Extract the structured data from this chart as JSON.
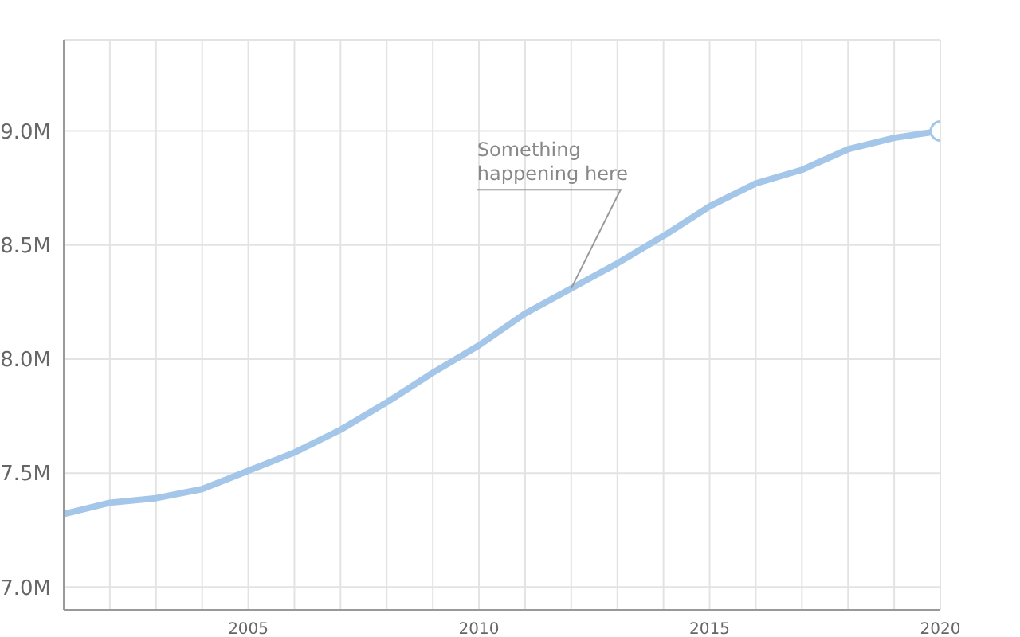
{
  "chart_data": {
    "type": "line",
    "x": [
      2001,
      2002,
      2003,
      2004,
      2005,
      2006,
      2007,
      2008,
      2009,
      2010,
      2011,
      2012,
      2013,
      2014,
      2015,
      2016,
      2017,
      2018,
      2019,
      2020
    ],
    "series": [
      {
        "color": "#a3c6e9",
        "values": [
          7.32,
          7.37,
          7.39,
          7.43,
          7.51,
          7.59,
          7.69,
          7.81,
          7.94,
          8.06,
          8.2,
          8.31,
          8.42,
          8.54,
          8.67,
          8.77,
          8.83,
          8.92,
          8.97,
          9.0
        ],
        "marker": "none"
      },
      {
        "type": "scatter",
        "color": "#a3c6e9",
        "x": [
          2020
        ],
        "values": [
          9.0
        ],
        "marker": "circle"
      }
    ],
    "xlim": [
      2001,
      2020
    ],
    "xticks": [
      {
        "value": 2001,
        "label": null
      },
      {
        "value": 2002,
        "label": null
      },
      {
        "value": 2003,
        "label": null
      },
      {
        "value": 2004,
        "label": null
      },
      2005,
      {
        "value": 2006,
        "label": null
      },
      {
        "value": 2007,
        "label": null
      },
      {
        "value": 2008,
        "label": null
      },
      {
        "value": 2009,
        "label": null
      },
      2010,
      {
        "value": 2011,
        "label": null
      },
      {
        "value": 2012,
        "label": null
      },
      {
        "value": 2013,
        "label": null
      },
      {
        "value": 2014,
        "label": null
      },
      2015,
      {
        "value": 2016,
        "label": null
      },
      {
        "value": 2017,
        "label": null
      },
      {
        "value": 2018,
        "label": null
      },
      {
        "value": 2019,
        "label": null
      },
      2020
    ],
    "ylim": [
      6.9,
      9.4
    ],
    "yticks": [
      {
        "value": 7.0,
        "label": "7.0M"
      },
      {
        "value": 7.5,
        "label": "7.5M"
      },
      {
        "value": 8.0,
        "label": "8.0M"
      },
      {
        "value": 8.5,
        "label": "8.5M"
      },
      {
        "value": 9.0,
        "label": "9.0M"
      }
    ],
    "grid": true,
    "legend": false,
    "annotations": [
      {
        "text": "Something happening here",
        "x": 2012,
        "y": 8.31
      }
    ]
  }
}
